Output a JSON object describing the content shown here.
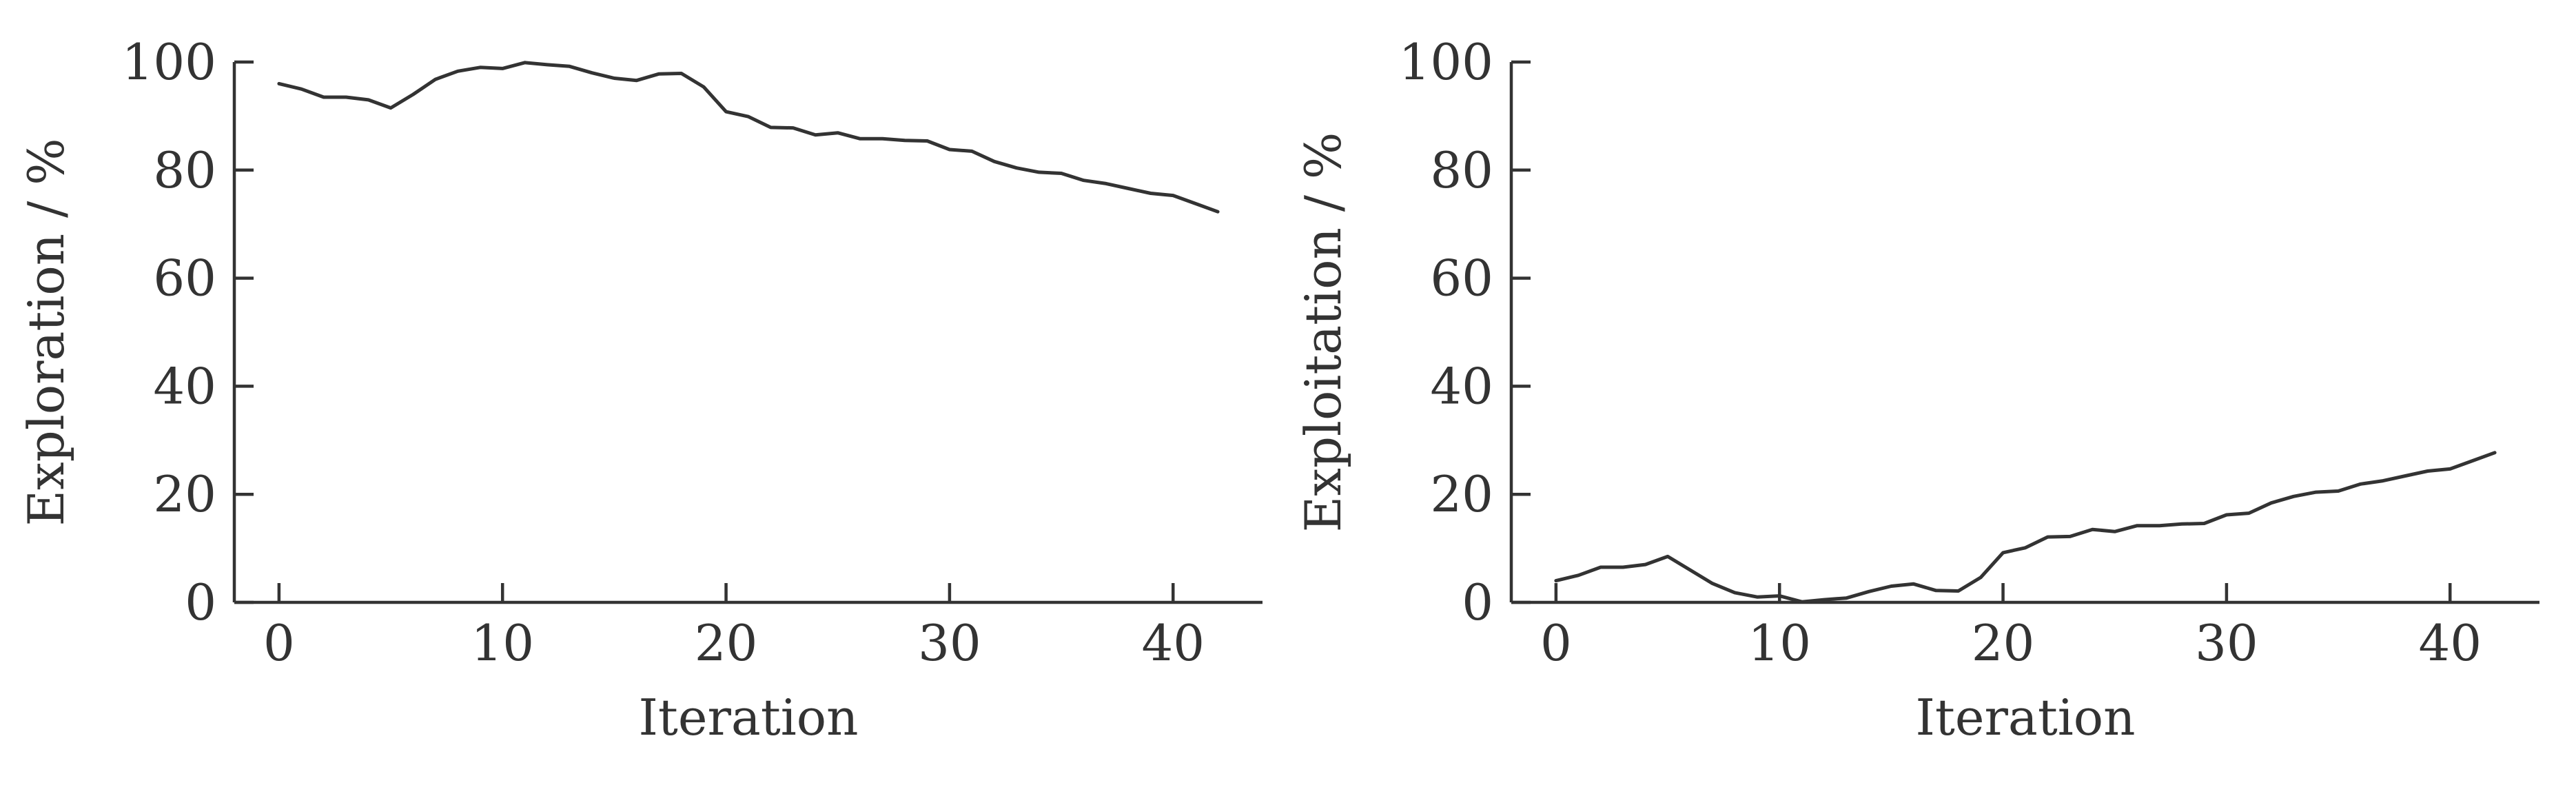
{
  "chart_data": [
    {
      "type": "line",
      "xlabel": "Iteration",
      "ylabel": "Exploration / %",
      "xlim": [
        -2,
        44
      ],
      "ylim": [
        0,
        100
      ],
      "xticks": [
        0,
        10,
        20,
        30,
        40
      ],
      "yticks": [
        0,
        20,
        40,
        60,
        80,
        100
      ],
      "grid": false,
      "line_color": "#333333",
      "series": [
        {
          "x": [
            0,
            1,
            2,
            3,
            4,
            5,
            6,
            7,
            8,
            9,
            10,
            11,
            12,
            13,
            14,
            15,
            16,
            17,
            18,
            19,
            20,
            21,
            22,
            23,
            24,
            25,
            26,
            27,
            28,
            29,
            30,
            31,
            32,
            33,
            34,
            35,
            36,
            37,
            38,
            39,
            40,
            41,
            42
          ],
          "values": [
            96,
            95,
            93.5,
            93.5,
            93,
            91.5,
            94,
            96.8,
            98.3,
            99,
            98.8,
            99.9,
            99.5,
            99.2,
            98,
            97,
            96.6,
            97.8,
            97.9,
            95.4,
            90.8,
            89.9,
            87.9,
            87.8,
            86.5,
            86.9,
            85.8,
            85.8,
            85.5,
            85.4,
            83.8,
            83.5,
            81.6,
            80.4,
            79.6,
            79.4,
            78.1,
            77.5,
            76.6,
            75.7,
            75.3,
            73.8,
            72.3
          ]
        }
      ]
    },
    {
      "type": "line",
      "xlabel": "Iteration",
      "ylabel": "Exploitation / %",
      "xlim": [
        -2,
        44
      ],
      "ylim": [
        0,
        100
      ],
      "xticks": [
        0,
        10,
        20,
        30,
        40
      ],
      "yticks": [
        0,
        20,
        40,
        60,
        80,
        100
      ],
      "grid": false,
      "line_color": "#333333",
      "series": [
        {
          "x": [
            0,
            1,
            2,
            3,
            4,
            5,
            6,
            7,
            8,
            9,
            10,
            11,
            12,
            13,
            14,
            15,
            16,
            17,
            18,
            19,
            20,
            21,
            22,
            23,
            24,
            25,
            26,
            27,
            28,
            29,
            30,
            31,
            32,
            33,
            34,
            35,
            36,
            37,
            38,
            39,
            40,
            41,
            42
          ],
          "values": [
            4,
            5,
            6.5,
            6.5,
            7,
            8.5,
            6,
            3.5,
            1.8,
            1,
            1.2,
            0.1,
            0.5,
            0.8,
            2,
            3,
            3.4,
            2.2,
            2.1,
            4.6,
            9.2,
            10.1,
            12.1,
            12.2,
            13.5,
            13.1,
            14.2,
            14.2,
            14.5,
            14.6,
            16.2,
            16.5,
            18.4,
            19.6,
            20.4,
            20.6,
            21.9,
            22.5,
            23.4,
            24.3,
            24.7,
            26.2,
            27.7
          ]
        }
      ]
    }
  ]
}
